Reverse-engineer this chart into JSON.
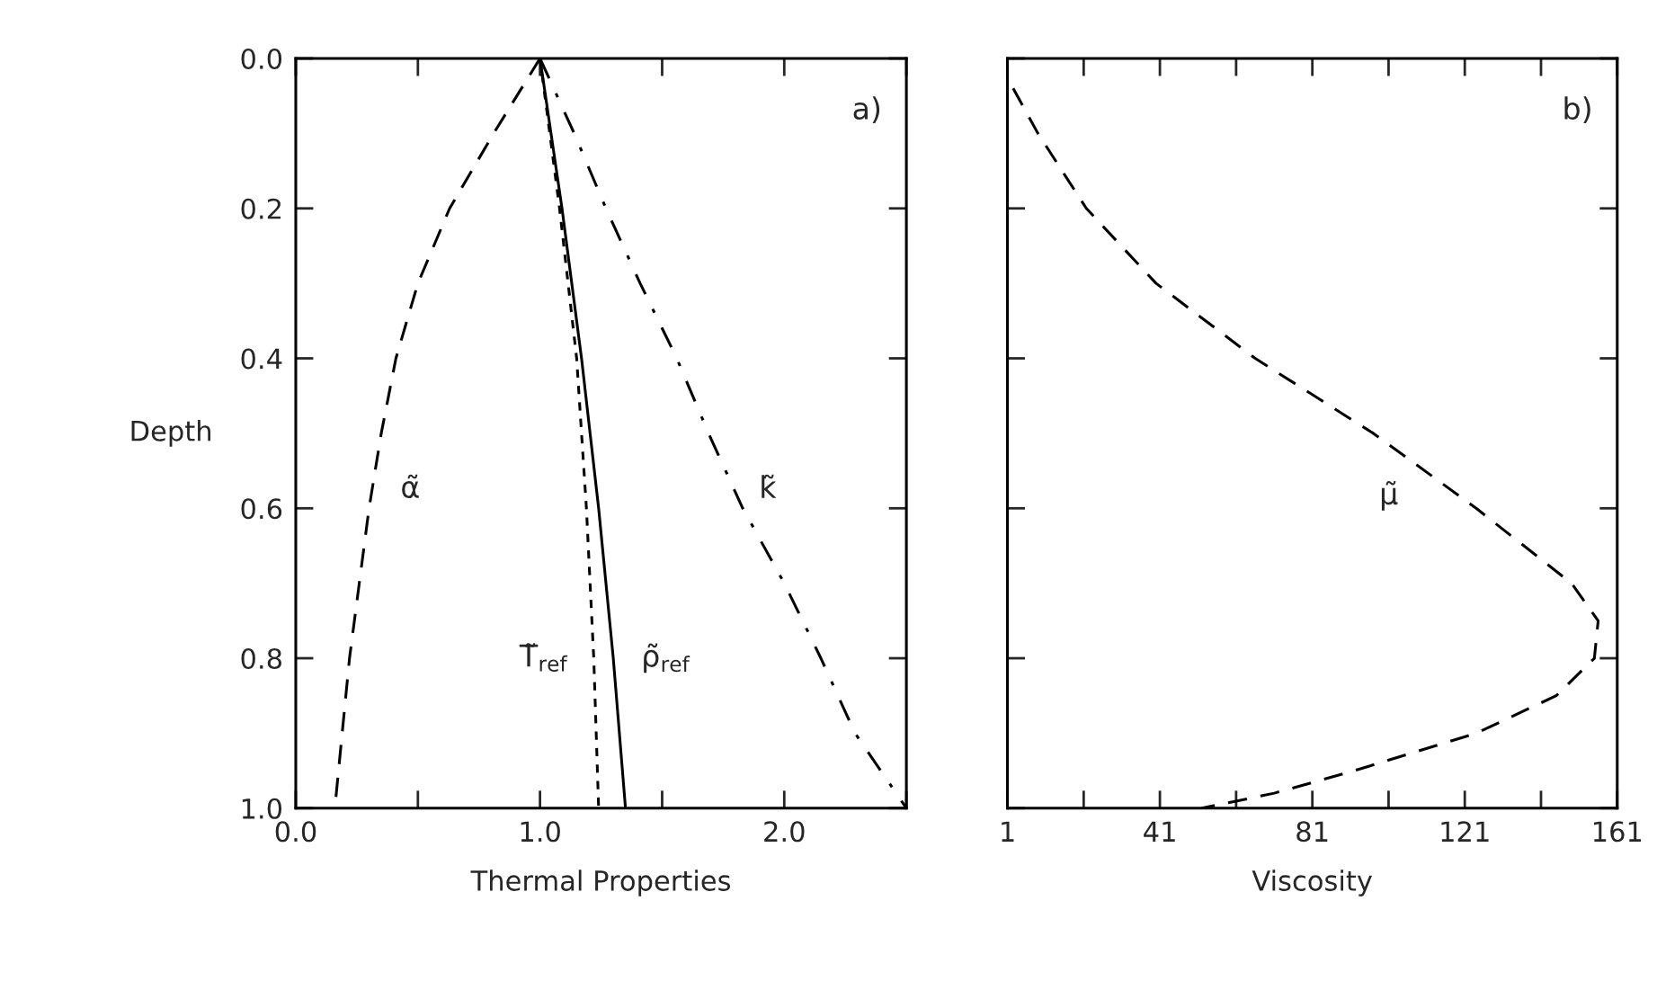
{
  "chart_data": [
    {
      "type": "line",
      "xlabel": "Thermal Properties",
      "ylabel": "Depth",
      "xlim": [
        0,
        2.5
      ],
      "ylim": [
        1.0,
        0.0
      ],
      "xticks": [
        {
          "value": 0,
          "label": "0.0"
        },
        {
          "value": 1,
          "label": "1.0"
        },
        {
          "value": 2,
          "label": "2.0"
        }
      ],
      "yticks": [
        {
          "value": 0,
          "label": "0.0"
        },
        0.2,
        0.4,
        0.6,
        0.8,
        {
          "value": 1,
          "label": "1.0"
        }
      ],
      "grid": false,
      "series": [
        {
          "name": "α̃",
          "color": "#000000",
          "line_style": "dashed",
          "x": [
            1.0,
            0.81,
            0.63,
            0.5,
            0.41,
            0.35,
            0.3,
            0.26,
            0.22,
            0.19,
            0.16
          ],
          "values": [
            0,
            0.1,
            0.2,
            0.3,
            0.4,
            0.5,
            0.6,
            0.7,
            0.8,
            0.9,
            1.0
          ]
        },
        {
          "name": "T̃$_{ref}$",
          "color": "#000000",
          "line_style": "dotted",
          "x": [
            1.0,
            1.08,
            1.15,
            1.19,
            1.22,
            1.24
          ],
          "values": [
            0,
            0.2,
            0.4,
            0.6,
            0.8,
            1.0
          ]
        },
        {
          "name": "ρ̃$_{ref}$",
          "color": "#000000",
          "line_style": "solid",
          "x": [
            1.0,
            1.09,
            1.17,
            1.24,
            1.3,
            1.35
          ],
          "values": [
            0,
            0.2,
            0.4,
            0.6,
            0.8,
            1.0
          ]
        },
        {
          "name": "k̃",
          "color": "#000000",
          "line_style": "dashdot",
          "x": [
            1.0,
            1.14,
            1.27,
            1.41,
            1.56,
            1.69,
            1.83,
            2.0,
            2.15,
            2.29,
            2.5
          ],
          "values": [
            0,
            0.1,
            0.2,
            0.3,
            0.4,
            0.5,
            0.6,
            0.7,
            0.8,
            0.9,
            1.0
          ]
        }
      ],
      "annotations": [
        "a)"
      ]
    },
    {
      "type": "line",
      "xlabel": "Viscosity",
      "tick_labels": "x",
      "xlim": [
        1,
        161
      ],
      "ylim": [
        1.0,
        0.0
      ],
      "xticks": [
        1,
        41,
        81,
        121,
        161
      ],
      "yticks": [
        0,
        0.2,
        0.4,
        0.6,
        0.8,
        1.0
      ],
      "grid": false,
      "series": [
        {
          "name": "μ̃",
          "color": "#000000",
          "line_style": "dashed",
          "x": [
            2.5,
            9,
            21.7,
            40,
            66,
            97,
            124,
            149,
            156,
            155,
            145,
            124,
            92,
            71,
            52
          ],
          "values": [
            0.04,
            0.1,
            0.2,
            0.3,
            0.4,
            0.5,
            0.6,
            0.7,
            0.75,
            0.8,
            0.85,
            0.9,
            0.95,
            0.98,
            1.0
          ]
        }
      ],
      "annotations": [
        "b)"
      ]
    }
  ]
}
